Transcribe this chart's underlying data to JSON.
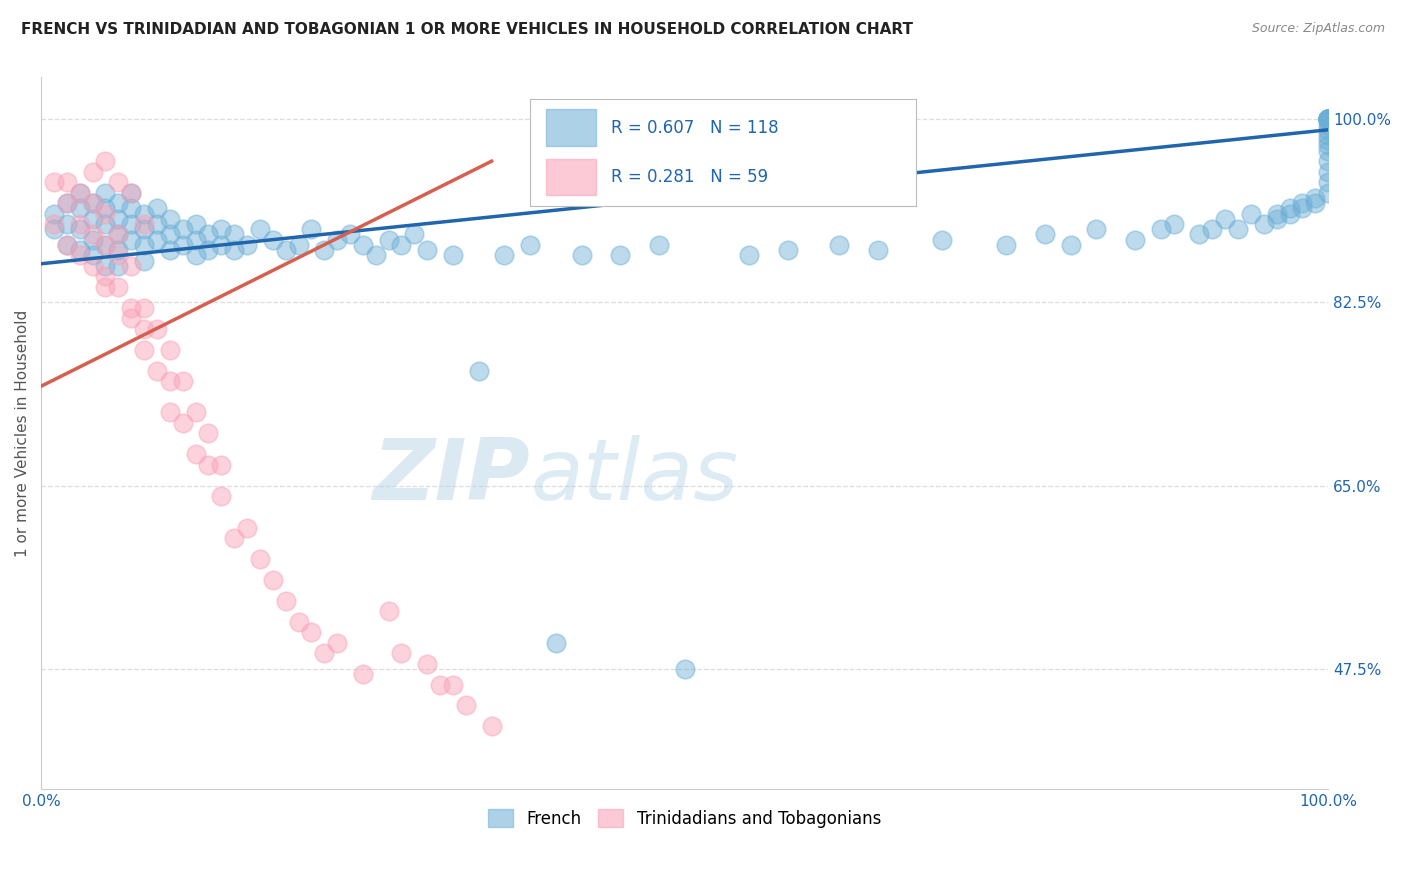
{
  "title": "FRENCH VS TRINIDADIAN AND TOBAGONIAN 1 OR MORE VEHICLES IN HOUSEHOLD CORRELATION CHART",
  "source": "Source: ZipAtlas.com",
  "xlabel_legend_french": "French",
  "xlabel_legend_tt": "Trinidadians and Tobagonians",
  "ylabel": "1 or more Vehicles in Household",
  "xmin": 0.0,
  "xmax": 1.0,
  "ymin": 0.36,
  "ymax": 1.04,
  "yticks": [
    0.475,
    0.65,
    0.825,
    1.0
  ],
  "ytick_labels": [
    "47.5%",
    "65.0%",
    "82.5%",
    "100.0%"
  ],
  "xtick_labels": [
    "0.0%",
    "100.0%"
  ],
  "xticks": [
    0.0,
    1.0
  ],
  "blue_R": 0.607,
  "blue_N": 118,
  "pink_R": 0.281,
  "pink_N": 59,
  "blue_color": "#6baed6",
  "pink_color": "#fa9fb5",
  "blue_line_color": "#2166ac",
  "pink_line_color": "#d6604d",
  "legend_text_color": "#2166ac",
  "watermark_zip": "ZIP",
  "watermark_atlas": "atlas",
  "title_fontsize": 11,
  "source_fontsize": 9,
  "background_color": "#ffffff",
  "grid_color": "#dddddd",
  "blue_scatter_x": [
    0.01,
    0.01,
    0.02,
    0.02,
    0.02,
    0.03,
    0.03,
    0.03,
    0.03,
    0.04,
    0.04,
    0.04,
    0.04,
    0.05,
    0.05,
    0.05,
    0.05,
    0.05,
    0.06,
    0.06,
    0.06,
    0.06,
    0.06,
    0.07,
    0.07,
    0.07,
    0.07,
    0.08,
    0.08,
    0.08,
    0.08,
    0.09,
    0.09,
    0.09,
    0.1,
    0.1,
    0.1,
    0.11,
    0.11,
    0.12,
    0.12,
    0.12,
    0.13,
    0.13,
    0.14,
    0.14,
    0.15,
    0.15,
    0.16,
    0.17,
    0.18,
    0.19,
    0.2,
    0.21,
    0.22,
    0.23,
    0.24,
    0.25,
    0.26,
    0.27,
    0.28,
    0.29,
    0.3,
    0.32,
    0.34,
    0.36,
    0.38,
    0.4,
    0.42,
    0.45,
    0.48,
    0.5,
    0.55,
    0.58,
    0.62,
    0.65,
    0.7,
    0.75,
    0.78,
    0.8,
    0.82,
    0.85,
    0.87,
    0.88,
    0.9,
    0.91,
    0.92,
    0.93,
    0.94,
    0.95,
    0.96,
    0.96,
    0.97,
    0.97,
    0.98,
    0.98,
    0.99,
    0.99,
    1.0,
    1.0,
    1.0,
    1.0,
    1.0,
    1.0,
    1.0,
    1.0,
    1.0,
    1.0,
    1.0,
    1.0,
    1.0,
    1.0,
    1.0,
    1.0,
    1.0,
    1.0,
    1.0,
    1.0
  ],
  "blue_scatter_y": [
    0.895,
    0.91,
    0.88,
    0.9,
    0.92,
    0.875,
    0.895,
    0.915,
    0.93,
    0.885,
    0.905,
    0.92,
    0.87,
    0.88,
    0.9,
    0.915,
    0.93,
    0.86,
    0.89,
    0.905,
    0.92,
    0.875,
    0.86,
    0.885,
    0.9,
    0.915,
    0.93,
    0.88,
    0.895,
    0.91,
    0.865,
    0.885,
    0.9,
    0.915,
    0.875,
    0.89,
    0.905,
    0.88,
    0.895,
    0.87,
    0.885,
    0.9,
    0.875,
    0.89,
    0.88,
    0.895,
    0.875,
    0.89,
    0.88,
    0.895,
    0.885,
    0.875,
    0.88,
    0.895,
    0.875,
    0.885,
    0.89,
    0.88,
    0.87,
    0.885,
    0.88,
    0.89,
    0.875,
    0.87,
    0.76,
    0.87,
    0.88,
    0.5,
    0.87,
    0.87,
    0.88,
    0.475,
    0.87,
    0.875,
    0.88,
    0.875,
    0.885,
    0.88,
    0.89,
    0.88,
    0.895,
    0.885,
    0.895,
    0.9,
    0.89,
    0.895,
    0.905,
    0.895,
    0.91,
    0.9,
    0.91,
    0.905,
    0.915,
    0.91,
    0.92,
    0.915,
    0.925,
    0.92,
    0.93,
    0.94,
    0.95,
    0.96,
    0.97,
    0.975,
    0.98,
    0.985,
    0.99,
    0.995,
    1.0,
    1.0,
    1.0,
    1.0,
    1.0,
    1.0,
    1.0,
    1.0,
    1.0,
    1.0
  ],
  "pink_scatter_x": [
    0.01,
    0.01,
    0.02,
    0.02,
    0.02,
    0.03,
    0.03,
    0.03,
    0.04,
    0.04,
    0.04,
    0.05,
    0.05,
    0.05,
    0.05,
    0.06,
    0.06,
    0.06,
    0.07,
    0.07,
    0.07,
    0.08,
    0.08,
    0.08,
    0.09,
    0.09,
    0.1,
    0.1,
    0.1,
    0.11,
    0.11,
    0.12,
    0.12,
    0.13,
    0.13,
    0.14,
    0.14,
    0.15,
    0.16,
    0.17,
    0.18,
    0.19,
    0.2,
    0.21,
    0.22,
    0.23,
    0.25,
    0.27,
    0.28,
    0.3,
    0.31,
    0.32,
    0.33,
    0.35,
    0.04,
    0.05,
    0.06,
    0.07,
    0.08
  ],
  "pink_scatter_y": [
    0.94,
    0.9,
    0.92,
    0.88,
    0.94,
    0.9,
    0.87,
    0.93,
    0.89,
    0.86,
    0.92,
    0.88,
    0.85,
    0.91,
    0.84,
    0.87,
    0.84,
    0.89,
    0.82,
    0.86,
    0.81,
    0.78,
    0.82,
    0.8,
    0.76,
    0.8,
    0.75,
    0.78,
    0.72,
    0.71,
    0.75,
    0.68,
    0.72,
    0.67,
    0.7,
    0.64,
    0.67,
    0.6,
    0.61,
    0.58,
    0.56,
    0.54,
    0.52,
    0.51,
    0.49,
    0.5,
    0.47,
    0.53,
    0.49,
    0.48,
    0.46,
    0.46,
    0.44,
    0.42,
    0.95,
    0.96,
    0.94,
    0.93,
    0.9
  ],
  "blue_trend_x0": 0.0,
  "blue_trend_y0": 0.862,
  "blue_trend_x1": 1.0,
  "blue_trend_y1": 0.99,
  "pink_trend_x0": 0.0,
  "pink_trend_y0": 0.745,
  "pink_trend_x1": 0.35,
  "pink_trend_y1": 0.96
}
